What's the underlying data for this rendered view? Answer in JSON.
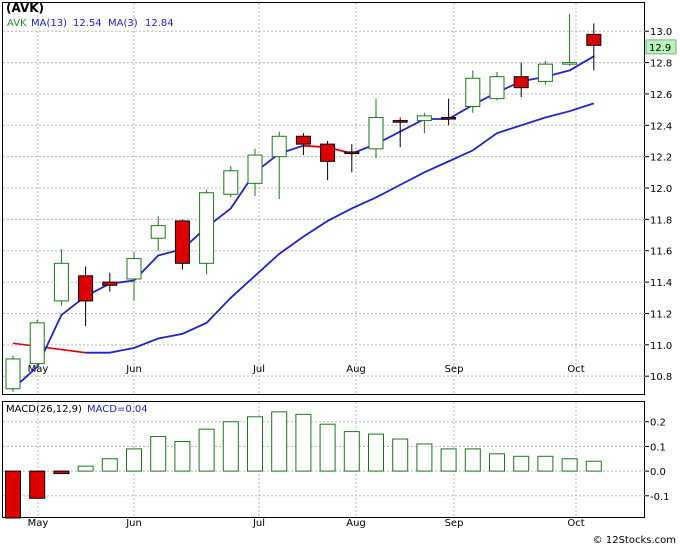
{
  "chart_data": [
    {
      "type": "candlestick",
      "title": "(AVK)",
      "legend": {
        "ticker": "AVK",
        "ma13_label": "MA(13)",
        "ma13_value": "12.54",
        "ma3_label": "MA(3)",
        "ma3_value": "12.84",
        "ticker_color": "#2a8a2a",
        "ma_color": "#2222cc"
      },
      "last_price_label": "12.9",
      "ylim": [
        10.68,
        13.18
      ],
      "y_ticks": [
        "10.8",
        "11.0",
        "11.2",
        "11.4",
        "11.6",
        "11.8",
        "12.0",
        "12.2",
        "12.4",
        "12.6",
        "12.8",
        "13.0"
      ],
      "x_ticks": [
        "May",
        "Jun",
        "Jul",
        "Aug",
        "Sep",
        "Oct"
      ],
      "up_color": "#1a7a1a",
      "down_color": "#dd0000",
      "candles": [
        {
          "o": 10.72,
          "h": 10.93,
          "l": 10.7,
          "c": 10.91
        },
        {
          "o": 10.88,
          "h": 11.16,
          "l": 10.86,
          "c": 11.14
        },
        {
          "o": 11.28,
          "h": 11.61,
          "l": 11.25,
          "c": 11.52
        },
        {
          "o": 11.44,
          "h": 11.5,
          "l": 11.12,
          "c": 11.28
        },
        {
          "o": 11.4,
          "h": 11.46,
          "l": 11.34,
          "c": 11.38
        },
        {
          "o": 11.42,
          "h": 11.59,
          "l": 11.28,
          "c": 11.55
        },
        {
          "o": 11.68,
          "h": 11.82,
          "l": 11.6,
          "c": 11.76
        },
        {
          "o": 11.79,
          "h": 11.8,
          "l": 11.48,
          "c": 11.52
        },
        {
          "o": 11.52,
          "h": 11.99,
          "l": 11.45,
          "c": 11.97
        },
        {
          "o": 11.96,
          "h": 12.14,
          "l": 11.94,
          "c": 12.11
        },
        {
          "o": 12.03,
          "h": 12.25,
          "l": 11.95,
          "c": 12.21
        },
        {
          "o": 12.2,
          "h": 12.36,
          "l": 11.93,
          "c": 12.33
        },
        {
          "o": 12.33,
          "h": 12.35,
          "l": 12.21,
          "c": 12.28
        },
        {
          "o": 12.28,
          "h": 12.3,
          "l": 12.05,
          "c": 12.17
        },
        {
          "o": 12.23,
          "h": 12.28,
          "l": 12.1,
          "c": 12.22
        },
        {
          "o": 12.25,
          "h": 12.57,
          "l": 12.19,
          "c": 12.45
        },
        {
          "o": 12.43,
          "h": 12.45,
          "l": 12.26,
          "c": 12.42
        },
        {
          "o": 12.43,
          "h": 12.48,
          "l": 12.35,
          "c": 12.46
        },
        {
          "o": 12.45,
          "h": 12.57,
          "l": 12.4,
          "c": 12.44
        },
        {
          "o": 12.52,
          "h": 12.75,
          "l": 12.48,
          "c": 12.7
        },
        {
          "o": 12.57,
          "h": 12.74,
          "l": 12.56,
          "c": 12.71
        },
        {
          "o": 12.71,
          "h": 12.8,
          "l": 12.58,
          "c": 12.64
        },
        {
          "o": 12.68,
          "h": 12.81,
          "l": 12.66,
          "c": 12.79
        },
        {
          "o": 12.79,
          "h": 13.11,
          "l": 12.78,
          "c": 12.8
        },
        {
          "o": 12.98,
          "h": 13.05,
          "l": 12.75,
          "c": 12.91
        }
      ],
      "ma3": [
        10.72,
        10.86,
        11.19,
        11.31,
        11.39,
        11.41,
        11.57,
        11.61,
        11.75,
        11.87,
        12.1,
        12.22,
        12.27,
        12.26,
        12.22,
        12.28,
        12.36,
        12.44,
        12.44,
        12.53,
        12.61,
        12.68,
        12.71,
        12.75,
        12.84
      ],
      "ma3_segment_colors": [
        "#2222cc",
        "#2222cc",
        "#2222cc",
        "#2222cc",
        "#2222cc",
        "#2222cc",
        "#2222cc",
        "#2222cc",
        "#2222cc",
        "#2222cc",
        "#2222cc",
        "#2222cc",
        "#dd0000",
        "#dd0000",
        "#2222cc",
        "#2222cc",
        "#2222cc",
        "#2222cc",
        "#2222cc",
        "#2222cc",
        "#2222cc",
        "#2222cc",
        "#2222cc",
        "#2222cc"
      ],
      "ma13": [
        11.01,
        10.99,
        10.97,
        10.95,
        10.95,
        10.98,
        11.04,
        11.07,
        11.14,
        11.3,
        11.44,
        11.58,
        11.69,
        11.79,
        11.87,
        11.94,
        12.02,
        12.1,
        12.17,
        12.24,
        12.35,
        12.4,
        12.45,
        12.49,
        12.54
      ],
      "ma13_start_index": 0,
      "ma13_red_until_index": 3,
      "ma13_visible_from_index": 3
    },
    {
      "type": "bar",
      "title": "MACD(26,12,9)",
      "legend": {
        "label": "MACD(26,12,9)",
        "value_label": "MACD=0.04",
        "value_color": "#2222cc"
      },
      "ylim": [
        -0.19,
        0.28
      ],
      "y_ticks": [
        "0.2",
        "0.1",
        "0.0",
        "-0.1"
      ],
      "x_ticks": [
        "May",
        "Jun",
        "Jul",
        "Aug",
        "Sep",
        "Oct"
      ],
      "values": [
        -0.19,
        -0.11,
        -0.01,
        0.02,
        0.05,
        0.09,
        0.14,
        0.12,
        0.17,
        0.2,
        0.22,
        0.24,
        0.23,
        0.19,
        0.16,
        0.15,
        0.13,
        0.11,
        0.09,
        0.09,
        0.07,
        0.06,
        0.06,
        0.05,
        0.04
      ]
    }
  ],
  "watermark": "© 12Stocks.com"
}
